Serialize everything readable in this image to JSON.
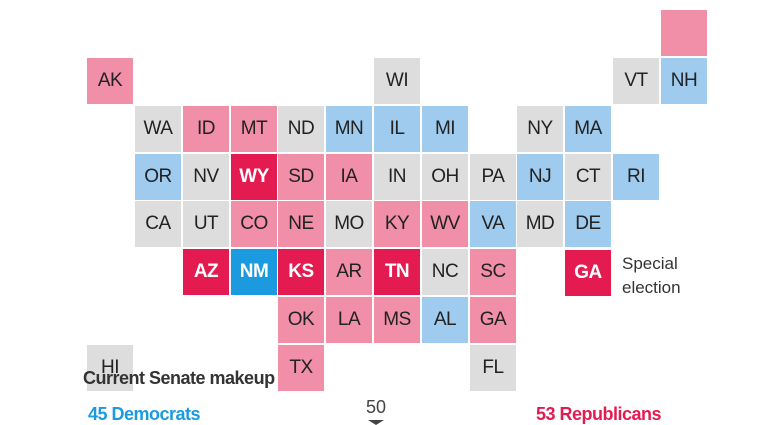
{
  "colors": {
    "tossup": "#dddddd",
    "dem": "#9ecbee",
    "rep": "#f18ea8",
    "dem_strong": "#1b9ae0",
    "rep_strong": "#e31b50",
    "special": "#e31b50",
    "dem_text": "#1b9ae0",
    "rep_text": "#e31b50"
  },
  "states": [
    {
      "abbr": "AK",
      "category": "rep"
    },
    {
      "abbr": "WI",
      "category": "tossup"
    },
    {
      "abbr": "VT",
      "category": "tossup"
    },
    {
      "abbr": "NH",
      "category": "dem"
    },
    {
      "abbr": "ME",
      "category": "rep",
      "label_visible": false
    },
    {
      "abbr": "WA",
      "category": "tossup"
    },
    {
      "abbr": "ID",
      "category": "rep"
    },
    {
      "abbr": "MT",
      "category": "rep"
    },
    {
      "abbr": "ND",
      "category": "tossup"
    },
    {
      "abbr": "MN",
      "category": "dem"
    },
    {
      "abbr": "IL",
      "category": "dem"
    },
    {
      "abbr": "MI",
      "category": "dem"
    },
    {
      "abbr": "NY",
      "category": "tossup"
    },
    {
      "abbr": "MA",
      "category": "dem"
    },
    {
      "abbr": "OR",
      "category": "dem"
    },
    {
      "abbr": "NV",
      "category": "tossup"
    },
    {
      "abbr": "WY",
      "category": "special"
    },
    {
      "abbr": "SD",
      "category": "rep"
    },
    {
      "abbr": "IA",
      "category": "rep"
    },
    {
      "abbr": "IN",
      "category": "tossup"
    },
    {
      "abbr": "OH",
      "category": "tossup"
    },
    {
      "abbr": "PA",
      "category": "tossup"
    },
    {
      "abbr": "NJ",
      "category": "dem"
    },
    {
      "abbr": "CT",
      "category": "tossup"
    },
    {
      "abbr": "RI",
      "category": "dem"
    },
    {
      "abbr": "CA",
      "category": "tossup"
    },
    {
      "abbr": "UT",
      "category": "tossup"
    },
    {
      "abbr": "CO",
      "category": "rep"
    },
    {
      "abbr": "NE",
      "category": "rep"
    },
    {
      "abbr": "MO",
      "category": "tossup"
    },
    {
      "abbr": "KY",
      "category": "rep"
    },
    {
      "abbr": "WV",
      "category": "rep"
    },
    {
      "abbr": "VA",
      "category": "dem"
    },
    {
      "abbr": "MD",
      "category": "tossup"
    },
    {
      "abbr": "DE",
      "category": "dem"
    },
    {
      "abbr": "AZ",
      "category": "special"
    },
    {
      "abbr": "NM",
      "category": "dem_strong"
    },
    {
      "abbr": "KS",
      "category": "special"
    },
    {
      "abbr": "AR",
      "category": "rep"
    },
    {
      "abbr": "TN",
      "category": "special"
    },
    {
      "abbr": "NC",
      "category": "tossup"
    },
    {
      "abbr": "SC",
      "category": "rep"
    },
    {
      "abbr": "OK",
      "category": "rep"
    },
    {
      "abbr": "LA",
      "category": "rep"
    },
    {
      "abbr": "MS",
      "category": "rep"
    },
    {
      "abbr": "AL",
      "category": "dem"
    },
    {
      "abbr": "GA",
      "category": "rep"
    },
    {
      "abbr": "HI",
      "category": "tossup"
    },
    {
      "abbr": "TX",
      "category": "rep"
    },
    {
      "abbr": "FL",
      "category": "tossup"
    }
  ],
  "legend": {
    "special_abbr": "GA",
    "special_line1": "Special",
    "special_line2": "election"
  },
  "senate": {
    "title": "Current Senate makeup",
    "democrats": "45 Democrats",
    "republicans": "53 Republicans",
    "majority": "50"
  }
}
